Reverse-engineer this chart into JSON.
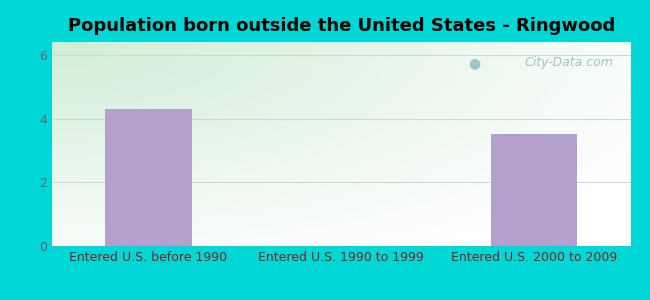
{
  "title": "Population born outside the United States - Ringwood",
  "categories": [
    "Entered U.S. before 1990",
    "Entered U.S. 1990 to 1999",
    "Entered U.S. 2000 to 2009"
  ],
  "values": [
    4.3,
    0,
    3.5
  ],
  "bar_color": "#b3a0cc",
  "bar_width": 0.45,
  "ylim": [
    0,
    6.4
  ],
  "yticks": [
    0,
    2,
    4,
    6
  ],
  "outer_bg": "#00d8d8",
  "xlabel_color": "#8b2020",
  "ylabel_color": "#666666",
  "title_color": "#000000",
  "title_fontsize": 13,
  "tick_label_fontsize": 9,
  "watermark_text": "City-Data.com",
  "watermark_color": "#9cc5c8",
  "grid_color": "#ccddcc",
  "bg_green": [
    210,
    237,
    215
  ],
  "bg_white": [
    255,
    255,
    255
  ]
}
